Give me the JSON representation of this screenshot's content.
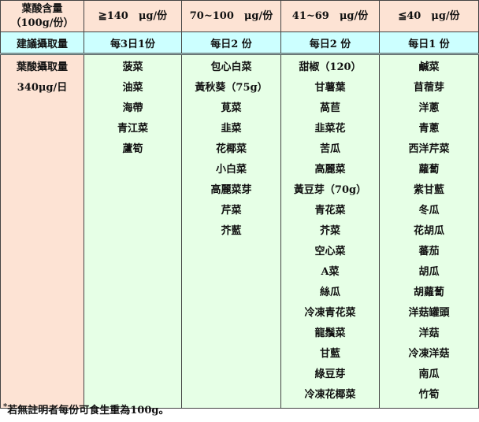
{
  "header": {
    "label_line1": "葉酸含量",
    "label_line2": "（100g/份）",
    "columns": [
      "≧140　μg/份",
      "70~100　μg/份",
      "41~69　μg/份",
      "≦40　μg/份"
    ]
  },
  "recommend": {
    "label": "建議攝取量",
    "values": [
      "每3日1份",
      "每日2 份",
      "每日2 份",
      "每日1 份"
    ]
  },
  "intake": {
    "line1": "葉酸攝取量",
    "line2": "340μg/日"
  },
  "columns": [
    [
      "菠菜",
      "油菜",
      "海帶",
      "青江菜",
      "蘆筍"
    ],
    [
      "包心白菜",
      "黃秋葵（75g）",
      "莧菜",
      "韭菜",
      "花椰菜",
      "小白菜",
      "高麗菜芽",
      "芹菜",
      "芥藍"
    ],
    [
      "甜椒（120）",
      "甘薯葉",
      "萵苣",
      "韭菜花",
      "苦瓜",
      "高麗菜",
      "黃豆芽（70g）",
      "青花菜",
      "芥菜",
      "空心菜",
      "A菜",
      "絲瓜",
      "冷凍青花菜",
      "龍鬚菜",
      "甘藍",
      "綠豆芽",
      "冷凍花椰菜"
    ],
    [
      "鹹菜",
      "苜蓿芽",
      "洋蔥",
      "青蔥",
      "西洋芹菜",
      "蘿蔔",
      "紫甘藍",
      "冬瓜",
      "花胡瓜",
      "蕃茄",
      "胡瓜",
      "胡蘿蔔",
      "洋菇罐頭",
      "洋菇",
      "冷凍洋菇",
      "南瓜",
      "竹筍"
    ]
  ],
  "footnote": {
    "mark": "*",
    "text": "若無註明者每份可食生重為100g。"
  },
  "colors": {
    "header": "#fde3d4",
    "recommend": "#ccffff",
    "body": "#e6ffe6"
  }
}
